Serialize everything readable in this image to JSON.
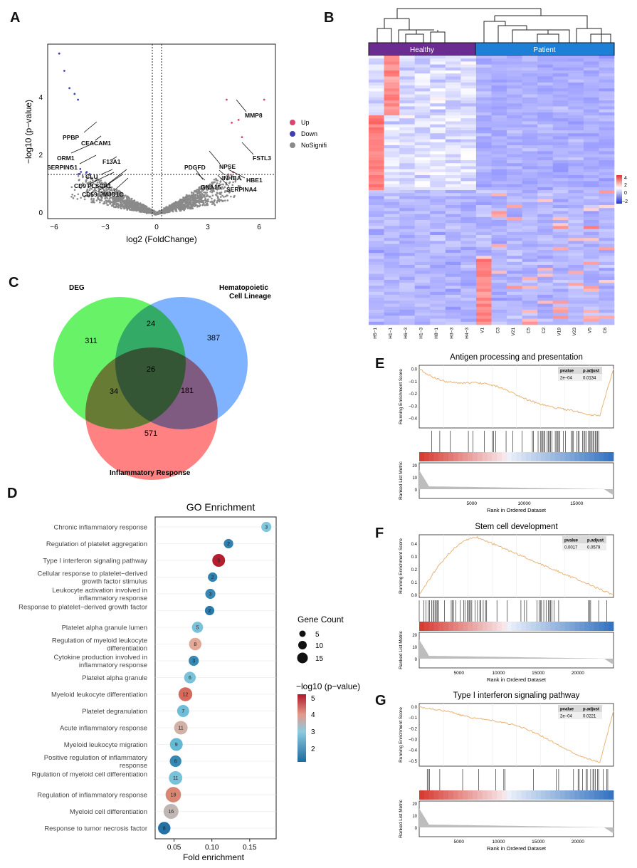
{
  "panel_labels": {
    "a": "A",
    "b": "B",
    "c": "C",
    "d": "D",
    "e": "E",
    "f": "F",
    "g": "G"
  },
  "volcano": {
    "xlabel": "log2 (FoldChange)",
    "ylabel": "−log10 (p−value)",
    "xticks": [
      "−6",
      "−3",
      "0",
      "3",
      "6"
    ],
    "yticks": [
      "0",
      "2",
      "4"
    ],
    "legend": [
      "Up",
      "Down",
      "NoSignifi"
    ],
    "colors": {
      "up": "#d6476c",
      "down": "#3f3fb0",
      "ns": "#8a8a8a"
    },
    "genes": [
      "MMP8",
      "FSTL3",
      "HBE1",
      "SERPINA4",
      "INHBA",
      "NPSE",
      "GNA15",
      "PDGFD",
      "PPBP",
      "CEACAM1",
      "ORM1",
      "SERPING1",
      "F13A1",
      "CLU",
      "CD9",
      "PLSCR1",
      "CD59",
      "JMJD1C"
    ]
  },
  "heatmap": {
    "groups": [
      "Healthy",
      "Patient"
    ],
    "group_colors": {
      "healthy": "#6a2c91",
      "patient": "#1d7fd6"
    },
    "samples": [
      "H5−1",
      "H1−1",
      "H6−3",
      "H1−3",
      "H8−1",
      "H3−3",
      "H4−3",
      "V1",
      "C3",
      "V21",
      "C5",
      "C2",
      "V19",
      "V23",
      "V5",
      "C6"
    ],
    "scale_ticks": [
      "4",
      "2",
      "0",
      "−2"
    ]
  },
  "venn": {
    "sets": [
      "DEG",
      "Hematopoietic Cell Lineage",
      "Inflammatory   Response"
    ],
    "counts": {
      "deg_only": "311",
      "hcl_only": "387",
      "inf_only": "571",
      "deg_hcl": "24",
      "deg_inf": "34",
      "hcl_inf": "181",
      "all": "26"
    },
    "colors": {
      "deg": "#4cf04c",
      "hcl": "#6aa6ff",
      "inf": "#ff6b6b"
    }
  },
  "go": {
    "title": "GO Enrichment",
    "xlabel": "Fold enrichment",
    "xticks": [
      "0.05",
      "0.10",
      "0.15"
    ],
    "terms": [
      {
        "label": "Chronic inflammatory response",
        "fe": 0.172,
        "count": "3",
        "logp": 2.9
      },
      {
        "label": "Regulation of platelet aggregation",
        "fe": 0.122,
        "count": "2",
        "logp": 1.8
      },
      {
        "label": "Type I interferon signaling pathway",
        "fe": 0.109,
        "count": "9",
        "logp": 5.1
      },
      {
        "label": "Cellular response to platelet−derived growth factor stimulus",
        "fe": 0.101,
        "count": "2",
        "logp": 1.8
      },
      {
        "label": "Leukocyte activation involved in inflammatory response",
        "fe": 0.098,
        "count": "3",
        "logp": 1.9
      },
      {
        "label": "Response to platelet−derived growth factor",
        "fe": 0.097,
        "count": "2",
        "logp": 1.7
      },
      {
        "label": "Platelet alpha granule lumen",
        "fe": 0.081,
        "count": "5",
        "logp": 2.8
      },
      {
        "label": "Regulation of myeloid leukocyte differentiation",
        "fe": 0.078,
        "count": "8",
        "logp": 3.5
      },
      {
        "label": "Cytokine production involved in inflammatory response",
        "fe": 0.076,
        "count": "3",
        "logp": 1.9
      },
      {
        "label": "Platelet alpha granule",
        "fe": 0.071,
        "count": "6",
        "logp": 2.8
      },
      {
        "label": "Myeloid leukocyte differentiation",
        "fe": 0.065,
        "count": "12",
        "logp": 4.2
      },
      {
        "label": "Platelet degranulation",
        "fe": 0.062,
        "count": "7",
        "logp": 2.7
      },
      {
        "label": "Acute inflammatory response",
        "fe": 0.059,
        "count": "11",
        "logp": 3.4
      },
      {
        "label": "Myeloid leukocyte migration",
        "fe": 0.053,
        "count": "9",
        "logp": 2.6
      },
      {
        "label": "Positive regulation of inflammatory response",
        "fe": 0.052,
        "count": "6",
        "logp": 1.9
      },
      {
        "label": "Rgulation of myeloid cell differentiation",
        "fe": 0.052,
        "count": "11",
        "logp": 2.8
      },
      {
        "label": "Regulation of inflammatory response",
        "fe": 0.049,
        "count": "18",
        "logp": 3.9
      },
      {
        "label": "Myeloid cell differentiation",
        "fe": 0.046,
        "count": "16",
        "logp": 3.3
      },
      {
        "label": "Response to tumor necrosis factor",
        "fe": 0.037,
        "count": "8",
        "logp": 1.6
      }
    ],
    "legend_count_title": "Gene Count",
    "legend_count_values": [
      "5",
      "10",
      "15"
    ],
    "legend_p_title": "−log10 (p−value)",
    "legend_p_ticks": [
      "5",
      "4",
      "3",
      "2"
    ]
  },
  "gsea": [
    {
      "id": "E",
      "title": "Antigen processing and presentation",
      "pvalue": "2e−04",
      "padjust": "0.0134",
      "yticks": [
        "0.0",
        "−0.1",
        "−0.2",
        "−0.3",
        "−0.4"
      ],
      "xticks": [
        "5000",
        "10000",
        "15000"
      ],
      "metric_ticks": [
        "20",
        "10",
        "0"
      ]
    },
    {
      "id": "F",
      "title": "Stem cell development",
      "pvalue": "0.0017",
      "padjust": "0.0579",
      "yticks": [
        "0.4",
        "0.3",
        "0.2",
        "0.1",
        "0.0"
      ],
      "xticks": [
        "5000",
        "10000",
        "15000",
        "20000"
      ],
      "metric_ticks": [
        "20",
        "10",
        "0"
      ]
    },
    {
      "id": "G",
      "title": "Type I interferon signaling pathway",
      "pvalue": "2e−04",
      "padjust": "0.0221",
      "yticks": [
        "0.0",
        "−0.1",
        "−0.2",
        "−0.3",
        "−0.4",
        "−0.5"
      ],
      "xticks": [
        "5000",
        "10000",
        "15000",
        "20000"
      ],
      "metric_ticks": [
        "20",
        "10",
        "0"
      ]
    }
  ],
  "gsea_labels": {
    "es": "Running Enrichment Score",
    "metric": "Ranked List Metric",
    "rank": "Rank in Ordered Dataset",
    "pvalue_hdr": "pvalue",
    "padjust_hdr": "p.adjust"
  }
}
